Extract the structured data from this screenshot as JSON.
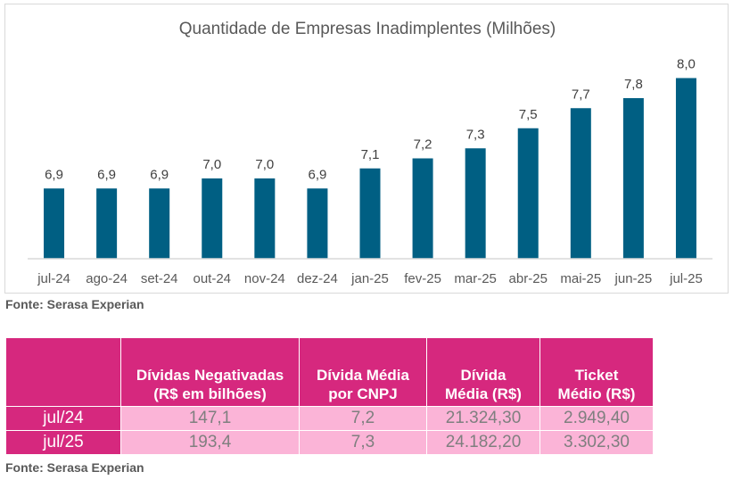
{
  "chart_data": {
    "type": "bar",
    "title": "Quantidade de Empresas Inadimplentes (Milhões)",
    "categories": [
      "jul-24",
      "ago-24",
      "set-24",
      "out-24",
      "nov-24",
      "dez-24",
      "jan-25",
      "fev-25",
      "mar-25",
      "abr-25",
      "mai-25",
      "jun-25",
      "jul-25"
    ],
    "values": [
      6.9,
      6.9,
      6.9,
      7.0,
      7.0,
      6.9,
      7.1,
      7.2,
      7.3,
      7.5,
      7.7,
      7.8,
      8.0
    ],
    "data_labels": [
      "6,9",
      "6,9",
      "6,9",
      "7,0",
      "7,0",
      "6,9",
      "7,1",
      "7,2",
      "7,3",
      "7,5",
      "7,7",
      "7,8",
      "8,0"
    ],
    "xlabel": "",
    "ylabel": "",
    "grid": false,
    "legend": "none",
    "bar_color": "#005f83"
  },
  "chart_source": "Fonte: Serasa Experian",
  "table": {
    "headers": [
      "",
      "Dívidas Negativadas (R$ em bilhões)",
      "Dívida Média por CNPJ",
      "Dívida Média (R$)",
      "Ticket Médio (R$)"
    ],
    "header_lines": [
      [],
      [
        "Dívidas Negativadas",
        "(R$ em bilhões)"
      ],
      [
        "Dívida Média",
        "por CNPJ"
      ],
      [
        "Dívida",
        "Média (R$)"
      ],
      [
        "Ticket",
        "Médio (R$)"
      ]
    ],
    "rows": [
      {
        "label": "jul/24",
        "cells": [
          "147,1",
          "7,2",
          "21.324,30",
          "2.949,40"
        ]
      },
      {
        "label": "jul/25",
        "cells": [
          "193,4",
          "7,3",
          "24.182,20",
          "3.302,30"
        ]
      }
    ],
    "header_color": "#d6287e",
    "cell_color": "#fbb4d7"
  },
  "table_source": "Fonte: Serasa Experian"
}
